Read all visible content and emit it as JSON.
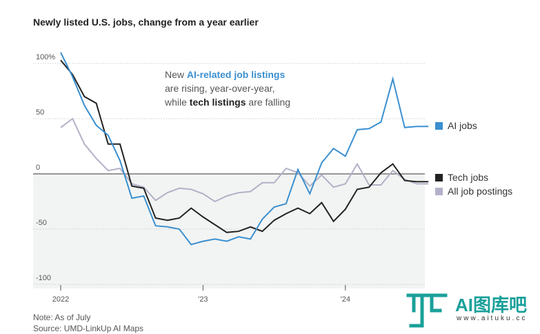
{
  "chart_data": {
    "type": "line",
    "title": "Newly listed U.S. jobs, change from a year earlier",
    "x_ticks": [
      "2022",
      "'23",
      "'24"
    ],
    "y_ticks": [
      "100%",
      "50",
      "0",
      "-50",
      "-100"
    ],
    "y_tick_values": [
      100,
      50,
      0,
      -50,
      -100
    ],
    "ylim": [
      -110,
      110
    ],
    "x": [
      0,
      1,
      2,
      3,
      4,
      5,
      6,
      7,
      8,
      9,
      10,
      11,
      12,
      13,
      14,
      15,
      16,
      17,
      18,
      19,
      20,
      21,
      22,
      23,
      24,
      25,
      26,
      27,
      28,
      29,
      30,
      31
    ],
    "series": [
      {
        "name": "AI jobs",
        "color": "#3a8fd0",
        "values": [
          110,
          88,
          62,
          44,
          35,
          12,
          -22,
          -20,
          -47,
          -48,
          -50,
          -64,
          -61,
          -59,
          -61,
          -57,
          -59,
          -41,
          -30,
          -27,
          4,
          -18,
          10,
          23,
          16,
          40,
          41,
          47,
          86,
          42,
          43,
          43
        ]
      },
      {
        "name": "Tech jobs",
        "color": "#222222",
        "values": [
          103,
          90,
          70,
          64,
          27,
          27,
          -11,
          -13,
          -40,
          -42,
          -40,
          -31,
          -39,
          -46,
          -53,
          -52,
          -48,
          -52,
          -42,
          -36,
          -31,
          -36,
          -26,
          -43,
          -32,
          -14,
          -12,
          1,
          9,
          -6,
          -7,
          -7
        ]
      },
      {
        "name": "All job postings",
        "color": "#b1b1c7",
        "values": [
          42,
          50,
          27,
          14,
          3,
          5,
          -9,
          -12,
          -24,
          -17,
          -13,
          -14,
          -18,
          -25,
          -20,
          -17,
          -16,
          -8,
          -8,
          5,
          1,
          -11,
          -1,
          -12,
          -9,
          9,
          -10,
          -10,
          3,
          -5,
          -9,
          -9
        ]
      }
    ]
  },
  "annotation": {
    "line1_prefix": "New ",
    "line1_highlight": "AI-related job listings",
    "line2": "are rising, year-over-year,",
    "line3_prefix": "while ",
    "line3_highlight": "tech listings",
    "line3_suffix": " are falling"
  },
  "legend": [
    {
      "label": "AI jobs",
      "color": "#3a8fd0"
    },
    {
      "label": "Tech jobs",
      "color": "#222222"
    },
    {
      "label": "All job postings",
      "color": "#b1b1c7"
    }
  ],
  "footer": {
    "note": "Note: As of July",
    "source": "Source: UMD-LinkUp AI Maps"
  },
  "watermark": {
    "text": "AI图库吧",
    "url": "www.aituku.cc"
  }
}
